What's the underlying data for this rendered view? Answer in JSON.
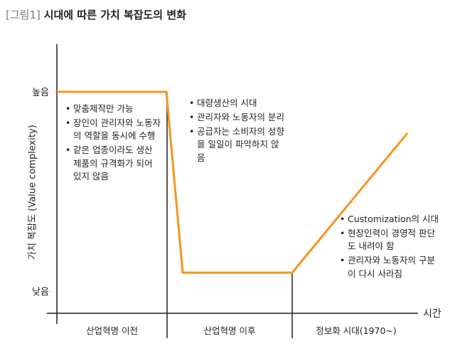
{
  "title": {
    "number": "[그림1]",
    "text": "시대에 따른 가치 복잡도의 변화"
  },
  "y_axis": {
    "label": "가치 복잡도 (Value complexity)",
    "high": "높음",
    "low": "낮음"
  },
  "x_axis": {
    "label": "시간"
  },
  "eras": [
    {
      "label": "산업혁명 이전"
    },
    {
      "label": "산업혁명 이후"
    },
    {
      "label": "정보화 시대(1970~)"
    }
  ],
  "notes": [
    {
      "items": [
        "맞춤제작만 가능",
        "장인이 관리자와 노동자의 역할을 동시에 수행",
        "같은 업종이라도 생산 제품의 규격화가 되어 있지 않음"
      ]
    },
    {
      "items": [
        "대량생산의 시대",
        "관리자와 노동자의 분리",
        "공급자는 소비자의 성향을 일일이 파악하지 않음"
      ]
    },
    {
      "items": [
        "Customization의 시대",
        "현장인력이 경영적 판단도 내려야 함",
        "관리자와 노동자의 구분이 다시 사라짐"
      ]
    }
  ],
  "line_color": "#f7941d",
  "axis_color": "#231f20"
}
